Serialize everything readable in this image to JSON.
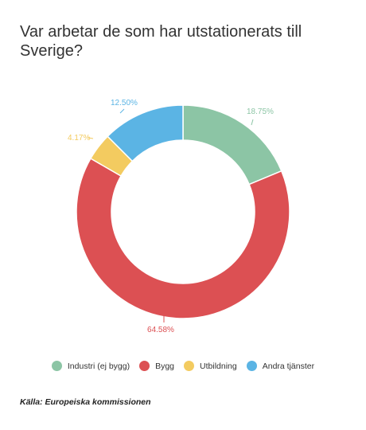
{
  "title": "Var arbetar de som har utstationerats till Sverige?",
  "source": "Källa: Europeiska kommissionen",
  "chart_data": {
    "type": "pie",
    "variant": "donut",
    "slices": [
      {
        "name": "Industri (ej bygg)",
        "value": 18.75,
        "label": "18.75%",
        "color": "#8cc5a5"
      },
      {
        "name": "Bygg",
        "value": 64.58,
        "label": "64.58%",
        "color": "#dc5053"
      },
      {
        "name": "Utbildning",
        "value": 4.17,
        "label": "4.17%",
        "color": "#f3cb60"
      },
      {
        "name": "Andra tjänster",
        "value": 12.5,
        "label": "12.50%",
        "color": "#5bb4e4"
      }
    ],
    "legend_position": "bottom"
  }
}
